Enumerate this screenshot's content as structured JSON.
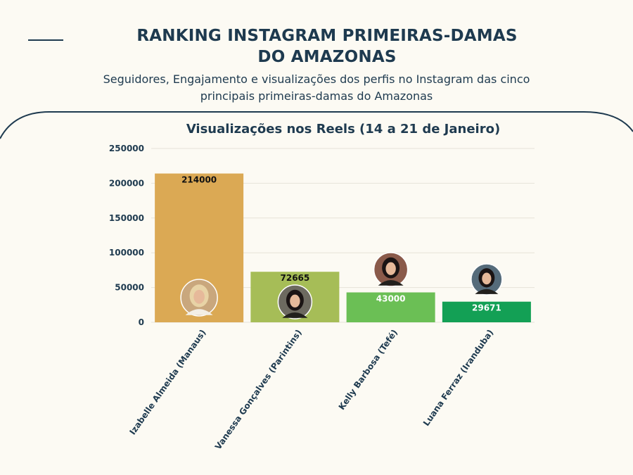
{
  "header": {
    "title_line1": "RANKING INSTAGRAM PRIMEIRAS-DAMAS",
    "title_line2": "DO AMAZONAS",
    "subtitle_line1": "Seguidores, Engajamento e visualizações dos perfis no Instagram das cinco",
    "subtitle_line2": "principais primeiras-damas do Amazonas"
  },
  "chart_data": {
    "type": "bar",
    "title": "Visualizações nos Reels (14 a 21 de Janeiro)",
    "xlabel": "",
    "ylabel": "",
    "ylim": [
      0,
      250000
    ],
    "yticks": [
      0,
      50000,
      100000,
      150000,
      200000,
      250000
    ],
    "grid": true,
    "legend": "none",
    "categories": [
      "Izabelle Almeida (Manaus)",
      "Vanessa Gonçalves (Parintins)",
      "Kelly Barbosa (Tefé)",
      "Luana Ferraz (Iranduba)"
    ],
    "values": [
      214000,
      72665,
      43000,
      29671
    ],
    "data_labels": [
      "214000",
      "72665",
      "43000",
      "29671"
    ],
    "colors": [
      "#dba954",
      "#a6bd57",
      "#6bbf55",
      "#13a055"
    ]
  }
}
